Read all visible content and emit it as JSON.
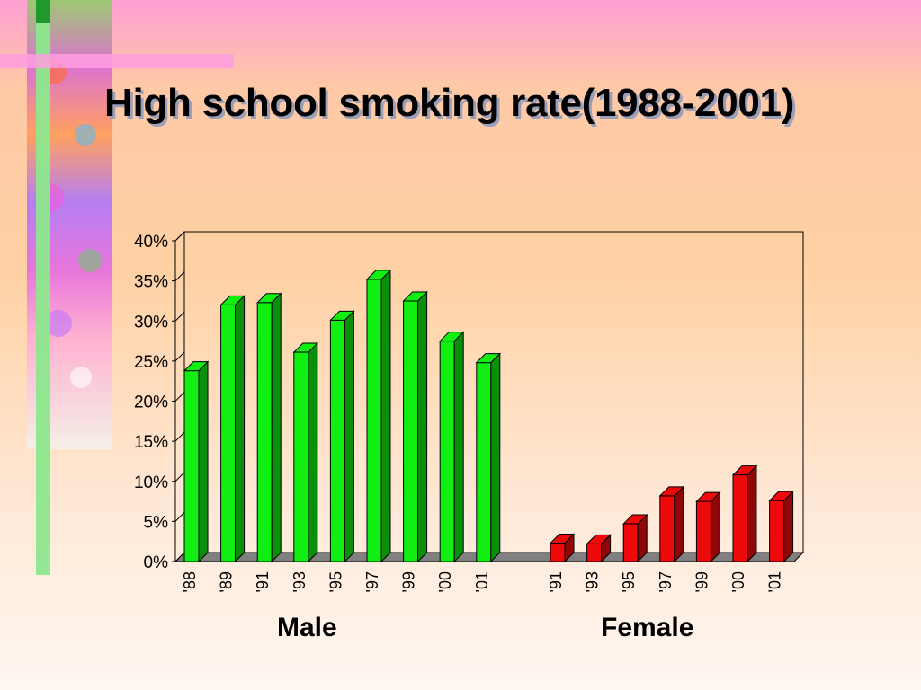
{
  "title": "High school smoking rate(1988-2001)",
  "colors": {
    "male": "#11ee11",
    "male_dark": "#0a8f0a",
    "female": "#ee0a0a",
    "female_dark": "#8f0606"
  },
  "groups": {
    "male_label": "Male",
    "female_label": "Female"
  },
  "chart_data": {
    "type": "bar",
    "ylim": [
      0,
      40
    ],
    "yticks": [
      "0%",
      "5%",
      "10%",
      "15%",
      "20%",
      "25%",
      "30%",
      "35%",
      "40%"
    ],
    "grid": false,
    "series": [
      {
        "group": "Male",
        "categories": [
          "'88",
          "'89",
          "'91",
          "'93",
          "'95",
          "'97",
          "'99",
          "'00",
          "'01"
        ],
        "values": [
          23.8,
          32,
          32.3,
          26.1,
          30.1,
          35.2,
          32.5,
          27.5,
          24.8
        ]
      },
      {
        "group": "Female",
        "categories": [
          "'91",
          "'93",
          "'95",
          "'97",
          "'99",
          "'00",
          "'01"
        ],
        "values": [
          2.3,
          2.2,
          4.7,
          8.2,
          7.5,
          10.8,
          7.6
        ]
      }
    ]
  }
}
